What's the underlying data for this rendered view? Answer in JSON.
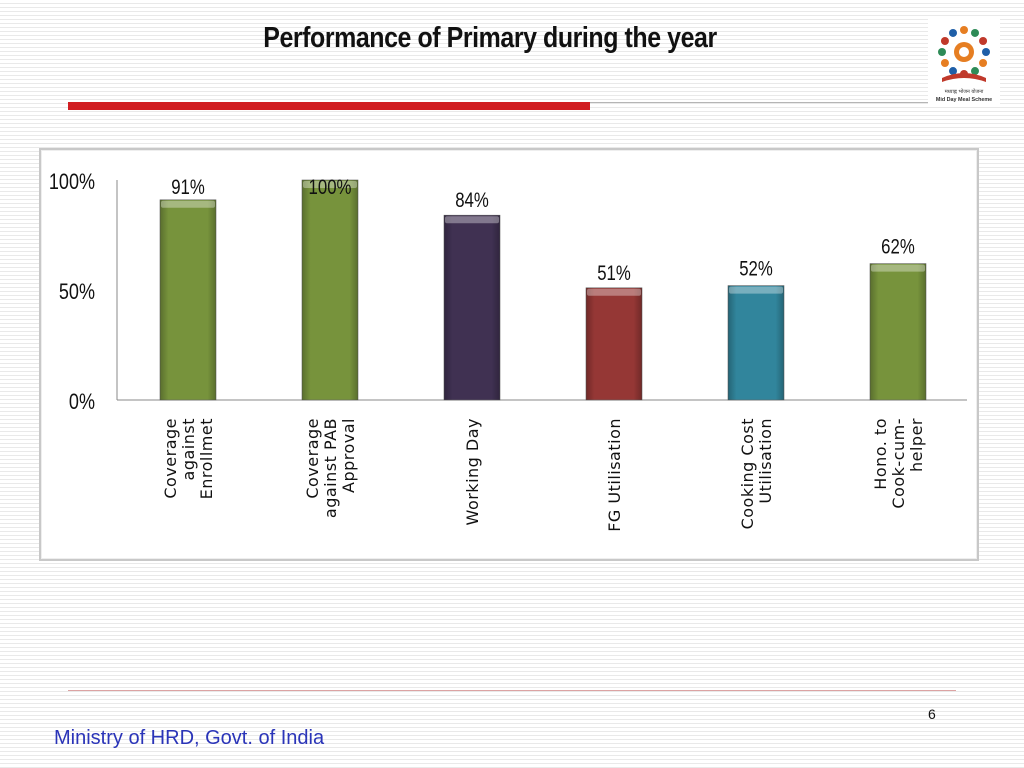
{
  "slide": {
    "title": "Performance of Primary during the year",
    "page_number": "6",
    "footer": "Ministry of HRD, Govt. of India",
    "logo_text": [
      "मध्याह्न भोजन योजना",
      "Mid Day Meal Scheme"
    ]
  },
  "chart_data": {
    "type": "bar",
    "title": "",
    "xlabel": "",
    "ylabel": "",
    "ylim": [
      0,
      100
    ],
    "yticks": [
      "0%",
      "50%",
      "100%"
    ],
    "ytick_values": [
      0,
      50,
      100
    ],
    "grid": false,
    "categories": [
      [
        "Coverage",
        "against",
        "Enrollmet"
      ],
      [
        "Coverage",
        "against PAB",
        "Approval"
      ],
      [
        "Working Day"
      ],
      [
        "FG Utilisation"
      ],
      [
        "Cooking Cost",
        "Utilisation"
      ],
      [
        "Hono. to",
        "Cook-cum-",
        "helper"
      ]
    ],
    "values": [
      91,
      100,
      84,
      51,
      52,
      62
    ],
    "data_labels": [
      "91%",
      "100%",
      "84%",
      "51%",
      "52%",
      "62%"
    ],
    "colors": [
      "#77933c",
      "#77933c",
      "#403152",
      "#953735",
      "#31859c",
      "#77933c"
    ]
  }
}
